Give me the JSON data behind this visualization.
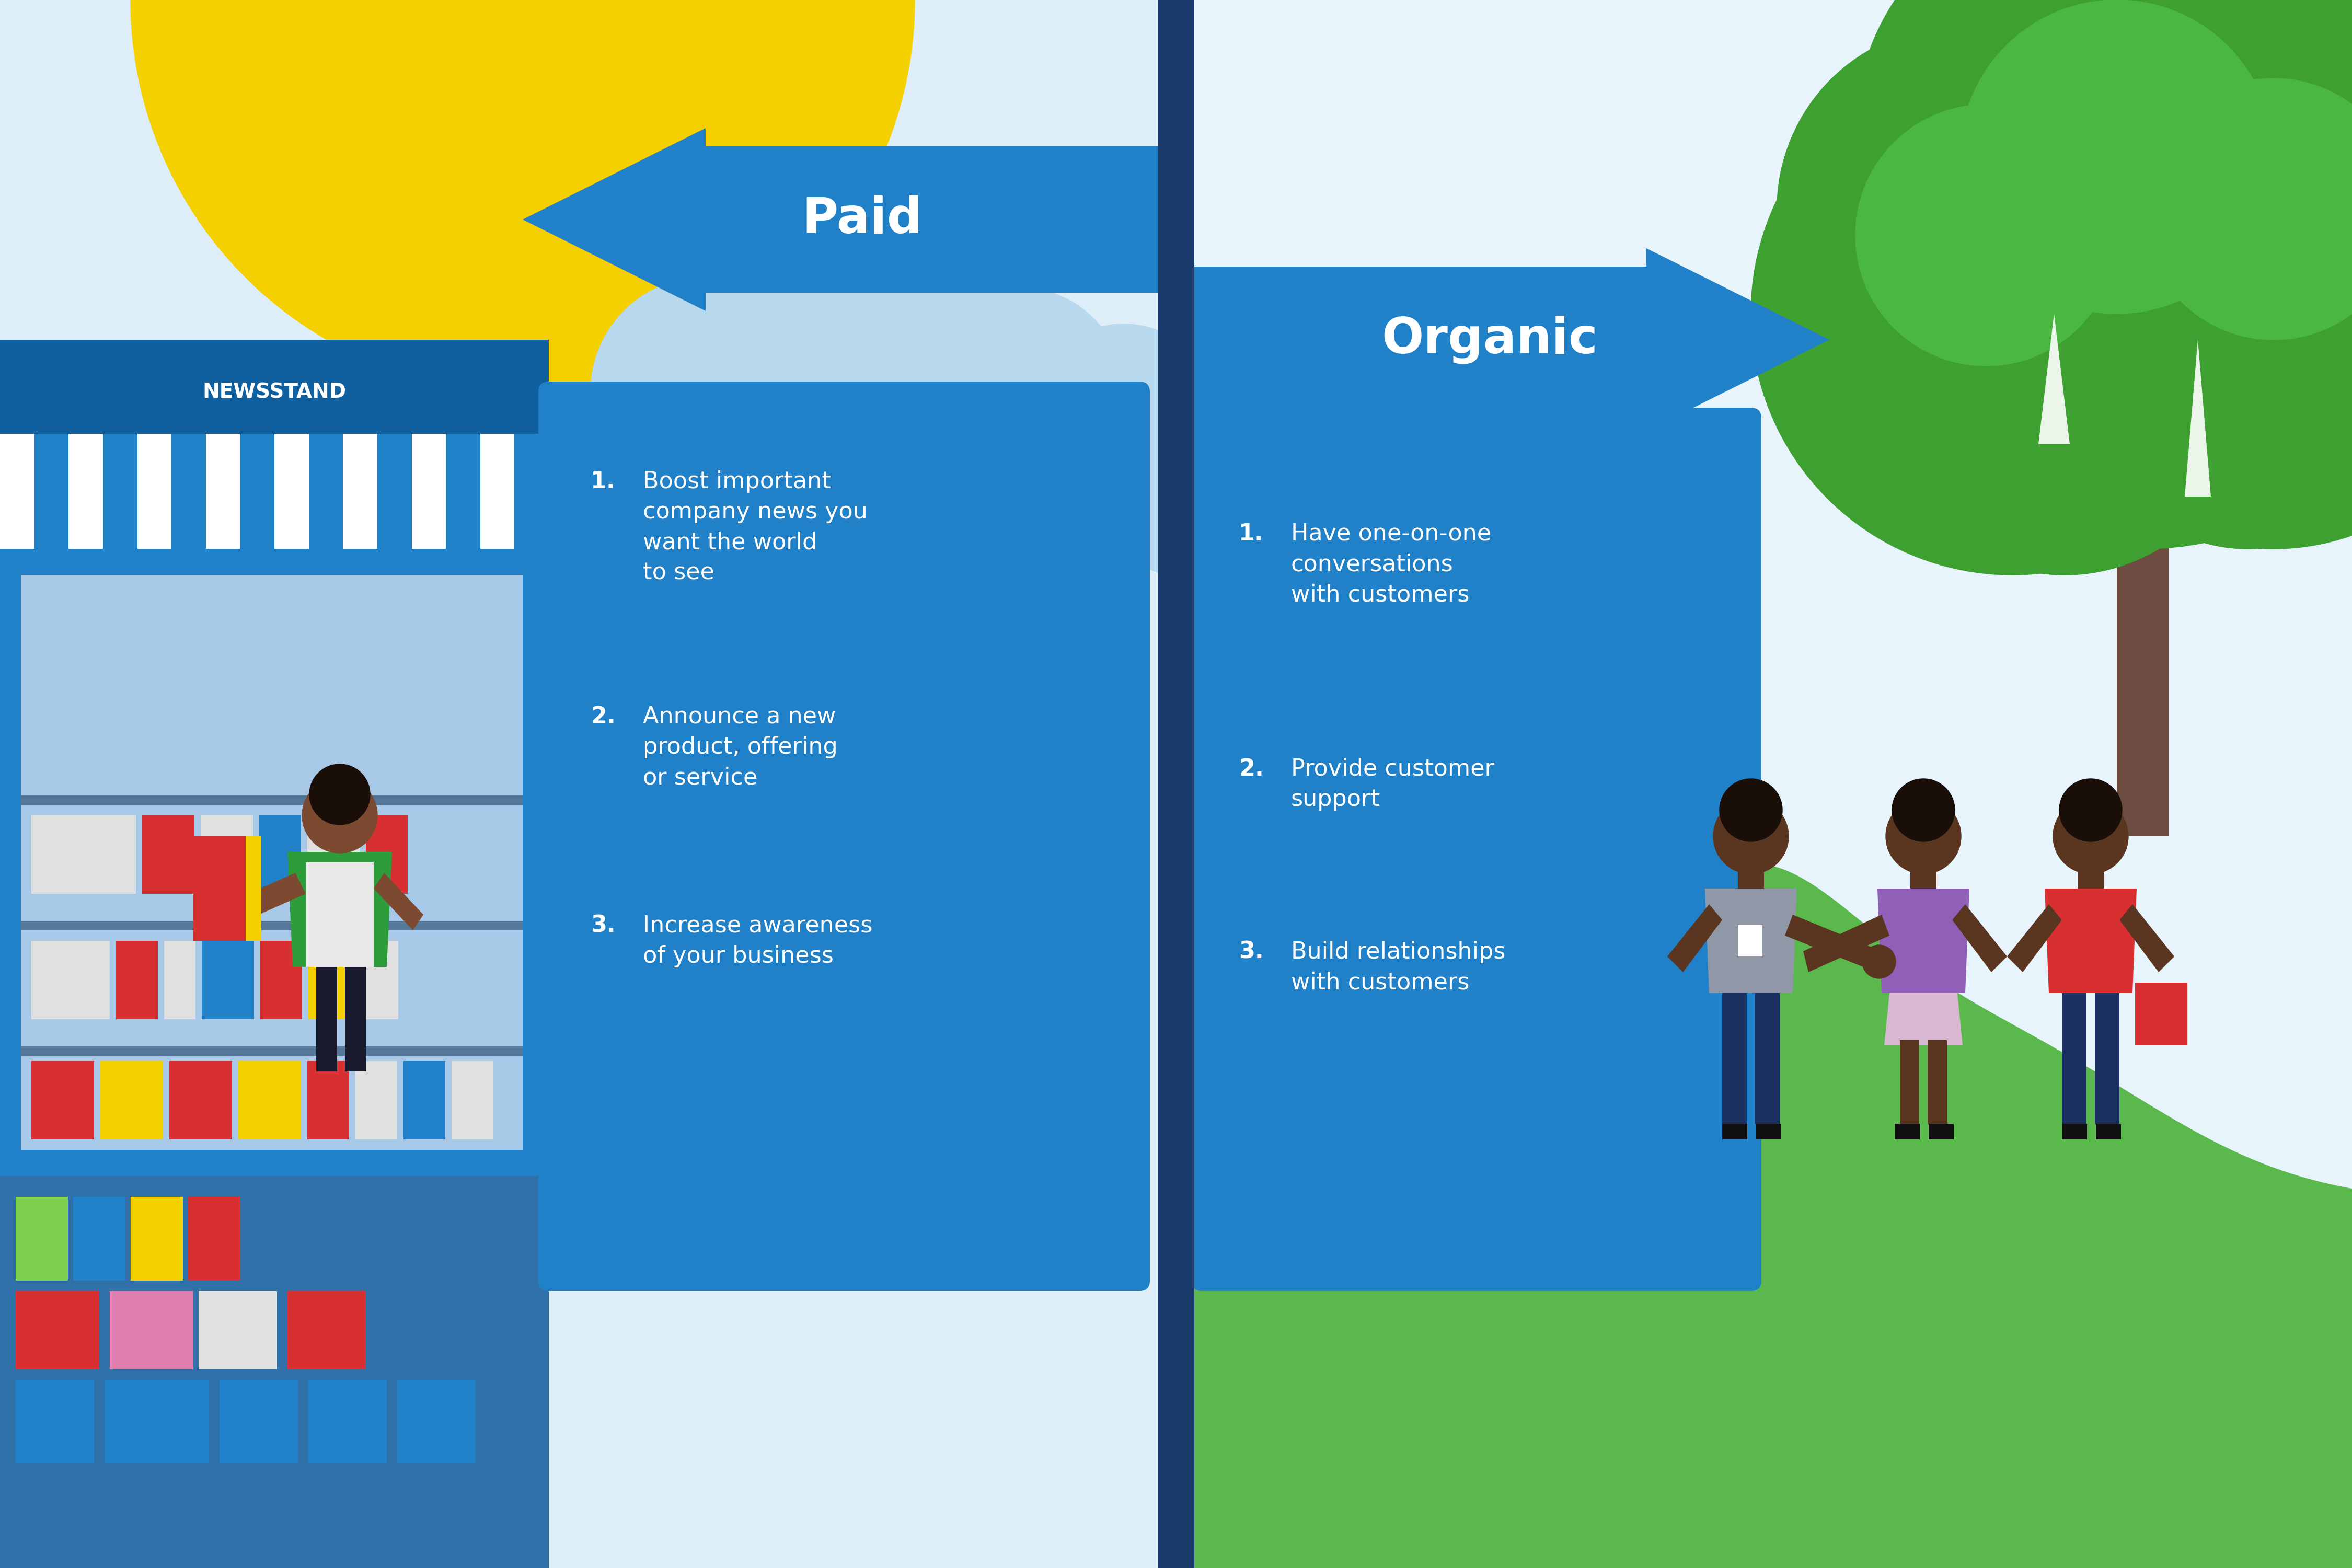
{
  "bg_left_color": "#ddeef8",
  "bg_right_color": "#e8f4fb",
  "sun_color": "#f5d000",
  "cloud_color": "#b8d8ee",
  "divider_color": "#1a3a6b",
  "arrow_color": "#2080c8",
  "paid_text": "Paid",
  "organic_text": "Organic",
  "info_box_color": "#2080c8",
  "paid_items": [
    "Boost important\ncompany news you\nwant the world\nto see",
    "Announce a new\nproduct, offering\nor service",
    "Increase awareness\nof your business"
  ],
  "organic_items": [
    "Have one-on-one\nconversations\nwith customers",
    "Provide customer\nsupport",
    "Build relationships\nwith customers"
  ],
  "newsstand_blue": "#2080c8",
  "newsstand_dark": "#1060a0",
  "newsstand_sign_bg": "#1a70b8",
  "awning_white": "#ffffff",
  "vendor_green": "#2d9c3a",
  "vendor_skin": "#7b4a30",
  "vendor_hair": "#1a0e08",
  "vendor_apron": "#e8e8e8",
  "shelf_bg": "#a8c8e8",
  "grass_bright": "#5ab84c",
  "grass_mid": "#48a040",
  "grass_dark": "#3d8e35",
  "tree_bright": "#4ab840",
  "tree_mid": "#3da030",
  "tree_dark": "#2d8020",
  "trunk_color": "#6d4c41",
  "person_skin": "#5a3520",
  "person_hair": "#1a0e08",
  "suit_gray": "#9098a8",
  "navy_blue": "#1a3060",
  "purple_shirt": "#9060b8",
  "red_shirt": "#d83030",
  "pink_skirt": "#e0b8d0",
  "white_color": "#ffffff",
  "dark_color": "#1a1a1a"
}
